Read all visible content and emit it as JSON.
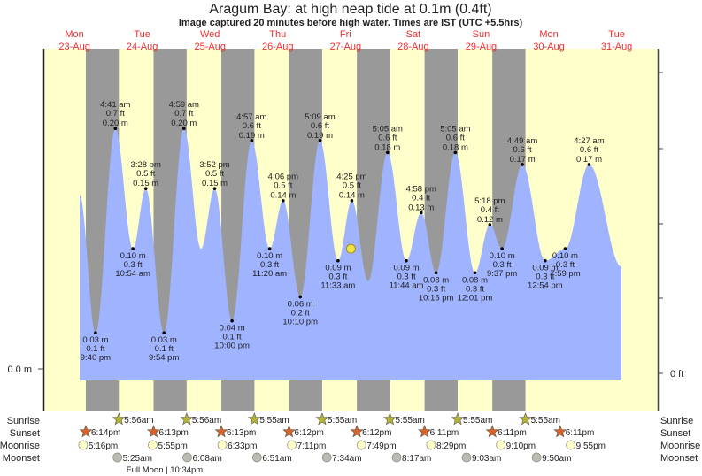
{
  "title": "Aragum Bay: at high  neap tide at 0.1m (0.4ft)",
  "subtitle": "Image captured 20 minutes before high water. Times are IST (UTC +5.5hrs)",
  "axis": {
    "left_label": "0.0 m",
    "right_label": "0 ft"
  },
  "colors": {
    "day": "#ffffcc",
    "night": "#999999",
    "water": "#9fb3ff",
    "sunrise": "#b5b533",
    "sunset": "#d9622b",
    "moonrise": "#ffffcc",
    "moonset": "#bbbbb3",
    "daylabel": "#f03030"
  },
  "chart_data": {
    "type": "area",
    "title": "Aragum Bay: at high  neap tide at 0.1m (0.4ft)",
    "ylabel": "Tide height (m)",
    "ylim": [
      0,
      0.23
    ],
    "x_units": "hours since Mon 23-Aug 00:00",
    "days": [
      {
        "dow": "Mon",
        "date": "23-Aug"
      },
      {
        "dow": "Tue",
        "date": "24-Aug"
      },
      {
        "dow": "Wed",
        "date": "25-Aug"
      },
      {
        "dow": "Thu",
        "date": "26-Aug"
      },
      {
        "dow": "Fri",
        "date": "27-Aug"
      },
      {
        "dow": "Sat",
        "date": "28-Aug"
      },
      {
        "dow": "Sun",
        "date": "29-Aug"
      },
      {
        "dow": "Mon",
        "date": "30-Aug"
      },
      {
        "dow": "Tue",
        "date": "31-Aug"
      }
    ],
    "extremes": [
      {
        "t": 21.67,
        "type": "low",
        "m": "0.03 m",
        "ft": "0.1 ft",
        "time": "9:40 pm",
        "v": 0.03
      },
      {
        "t": 28.68,
        "type": "high",
        "m": "0.20 m",
        "ft": "0.7 ft",
        "time": "4:41 am",
        "v": 0.2
      },
      {
        "t": 34.9,
        "type": "low",
        "m": "0.10 m",
        "ft": "0.3 ft",
        "time": "10:54 am",
        "v": 0.1
      },
      {
        "t": 39.47,
        "type": "high",
        "m": "0.15 m",
        "ft": "0.5 ft",
        "time": "3:28 pm",
        "v": 0.15
      },
      {
        "t": 45.9,
        "type": "low",
        "m": "0.03 m",
        "ft": "0.1 ft",
        "time": "9:54 pm",
        "v": 0.03
      },
      {
        "t": 52.98,
        "type": "high",
        "m": "0.20 m",
        "ft": "0.7 ft",
        "time": "4:59 am",
        "v": 0.2
      },
      {
        "t": 59.0,
        "type": "low",
        "v": 0.1
      },
      {
        "t": 63.87,
        "type": "high",
        "m": "0.15 m",
        "ft": "0.5 ft",
        "time": "3:52 pm",
        "v": 0.15
      },
      {
        "t": 70.0,
        "type": "low",
        "m": "0.04 m",
        "ft": "0.1 ft",
        "time": "10:00 pm",
        "v": 0.04
      },
      {
        "t": 76.95,
        "type": "high",
        "m": "0.19 m",
        "ft": "0.6 ft",
        "time": "4:57 am",
        "v": 0.19
      },
      {
        "t": 83.33,
        "type": "low",
        "m": "0.10 m",
        "ft": "0.3 ft",
        "time": "11:20 am",
        "v": 0.1
      },
      {
        "t": 88.1,
        "type": "high",
        "m": "0.14 m",
        "ft": "0.5 ft",
        "time": "4:06 pm",
        "v": 0.14
      },
      {
        "t": 94.17,
        "type": "low",
        "m": "0.06 m",
        "ft": "0.2 ft",
        "time": "10:10 pm",
        "v": 0.06
      },
      {
        "t": 101.15,
        "type": "high",
        "m": "0.19 m",
        "ft": "0.6 ft",
        "time": "5:09 am",
        "v": 0.19
      },
      {
        "t": 107.55,
        "type": "low",
        "m": "0.09 m",
        "ft": "0.3 ft",
        "time": "11:33 am",
        "v": 0.09
      },
      {
        "t": 112.42,
        "type": "high",
        "m": "0.14 m",
        "ft": "0.5 ft",
        "time": "4:25 pm",
        "v": 0.14
      },
      {
        "t": 118.2,
        "type": "low",
        "v": 0.073
      },
      {
        "t": 125.08,
        "type": "high",
        "m": "0.18 m",
        "ft": "0.6 ft",
        "time": "5:05 am",
        "v": 0.18
      },
      {
        "t": 131.73,
        "type": "low",
        "m": "0.09 m",
        "ft": "0.3 ft",
        "time": "11:44 am",
        "v": 0.09
      },
      {
        "t": 136.97,
        "type": "high",
        "m": "0.13 m",
        "ft": "0.4 ft",
        "time": "4:58 pm",
        "v": 0.13
      },
      {
        "t": 142.27,
        "type": "low",
        "m": "0.08 m",
        "ft": "0.3 ft",
        "time": "10:16 pm",
        "v": 0.08
      },
      {
        "t": 149.08,
        "type": "high",
        "m": "0.18 m",
        "ft": "0.6 ft",
        "time": "5:05 am",
        "v": 0.18
      },
      {
        "t": 156.02,
        "type": "low",
        "m": "0.08 m",
        "ft": "0.3 ft",
        "time": "12:01 pm",
        "v": 0.08
      },
      {
        "t": 161.3,
        "type": "high",
        "m": "0.12 m",
        "ft": "0.4 ft",
        "time": "5:18 pm",
        "v": 0.12
      },
      {
        "t": 165.62,
        "type": "low",
        "m": "0.10 m",
        "ft": "0.3 ft",
        "time": "9:37 pm",
        "v": 0.1
      },
      {
        "t": 172.82,
        "type": "high",
        "m": "0.17 m",
        "ft": "0.6 ft",
        "time": "4:49 am",
        "v": 0.17
      },
      {
        "t": 180.9,
        "type": "low",
        "m": "0.09 m",
        "ft": "0.3 ft",
        "time": "12:54 pm",
        "v": 0.09
      },
      {
        "t": 187.98,
        "type": "low",
        "m": "0.10 m",
        "ft": "0.3 ft",
        "time": "7:59 pm",
        "v": 0.1
      },
      {
        "t": 196.45,
        "type": "high",
        "m": "0.17 m",
        "ft": "0.6 ft",
        "time": "4:27 am",
        "v": 0.17
      }
    ],
    "curve_start": {
      "t": 16.05,
      "v": 0.145
    },
    "curve_end": {
      "t": 207.9,
      "v": 0.085
    },
    "current_marker": {
      "t": 112.1,
      "v": 0.1
    }
  },
  "almanac": {
    "labels": {
      "sunrise": "Sunrise",
      "sunset": "Sunset",
      "moonrise": "Moonrise",
      "moonset": "Moonset"
    },
    "sunrise": [
      {
        "day": 1,
        "time": "5:56am"
      },
      {
        "day": 2,
        "time": "5:56am"
      },
      {
        "day": 3,
        "time": "5:55am"
      },
      {
        "day": 4,
        "time": "5:55am"
      },
      {
        "day": 5,
        "time": "5:55am"
      },
      {
        "day": 6,
        "time": "5:55am"
      },
      {
        "day": 7,
        "time": "5:55am"
      }
    ],
    "sunset": [
      {
        "day": 0,
        "time": "6:14pm"
      },
      {
        "day": 1,
        "time": "6:13pm"
      },
      {
        "day": 2,
        "time": "6:13pm"
      },
      {
        "day": 3,
        "time": "6:12pm"
      },
      {
        "day": 4,
        "time": "6:12pm"
      },
      {
        "day": 5,
        "time": "6:11pm"
      },
      {
        "day": 6,
        "time": "6:11pm"
      },
      {
        "day": 7,
        "time": "6:11pm"
      }
    ],
    "moonrise": [
      {
        "day": 0,
        "time": "5:16pm"
      },
      {
        "day": 1,
        "time": "5:55pm"
      },
      {
        "day": 2,
        "time": "6:33pm"
      },
      {
        "day": 3,
        "time": "7:11pm"
      },
      {
        "day": 4,
        "time": "7:49pm"
      },
      {
        "day": 5,
        "time": "8:29pm"
      },
      {
        "day": 6,
        "time": "9:10pm"
      },
      {
        "day": 7,
        "time": "9:55pm"
      }
    ],
    "moonset": [
      {
        "day": 1,
        "time": "5:25am"
      },
      {
        "day": 2,
        "time": "6:08am"
      },
      {
        "day": 3,
        "time": "6:51am"
      },
      {
        "day": 4,
        "time": "7:34am"
      },
      {
        "day": 5,
        "time": "8:17am"
      },
      {
        "day": 6,
        "time": "9:03am"
      },
      {
        "day": 7,
        "time": "9:50am"
      }
    ],
    "moon_phase": "Full Moon | 10:34pm"
  }
}
